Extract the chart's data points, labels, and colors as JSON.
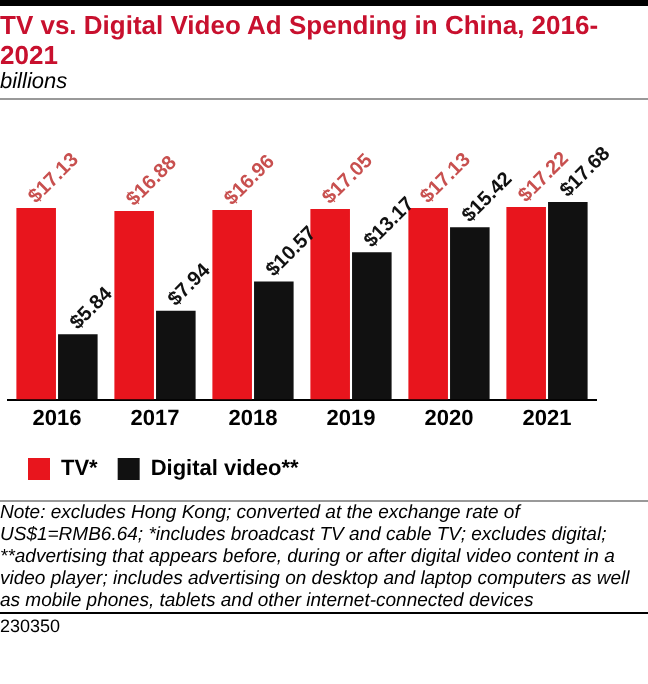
{
  "chart_data": {
    "type": "bar",
    "title": "TV vs. Digital Video Ad Spending in China, 2016-2021",
    "subtitle": "billions",
    "categories": [
      "2016",
      "2017",
      "2018",
      "2019",
      "2020",
      "2021"
    ],
    "series": [
      {
        "name": "TV*",
        "color": "#e8151d",
        "values": [
          17.13,
          16.88,
          16.96,
          17.05,
          17.13,
          17.22
        ],
        "value_labels": [
          "$17.13",
          "$16.88",
          "$16.96",
          "$17.05",
          "$17.13",
          "$17.22"
        ]
      },
      {
        "name": "Digital video**",
        "color": "#111111",
        "values": [
          5.84,
          7.94,
          10.57,
          13.17,
          15.42,
          17.68
        ],
        "value_labels": [
          "$5.84",
          "$7.94",
          "$10.57",
          "$13.17",
          "$15.42",
          "$17.68"
        ]
      }
    ],
    "legend": "bottom left",
    "grid": false,
    "annotations": [
      "Note: excludes Hong Kong; converted at the exchange rate of US$1=RMB6.64; *includes broadcast TV and cable TV; excludes digital; **advertising that appears before, during or after digital video content in a video player; includes advertising on desktop and laptop computers as well as mobile phones, tablets and other internet-connected devices",
      "230350"
    ]
  }
}
